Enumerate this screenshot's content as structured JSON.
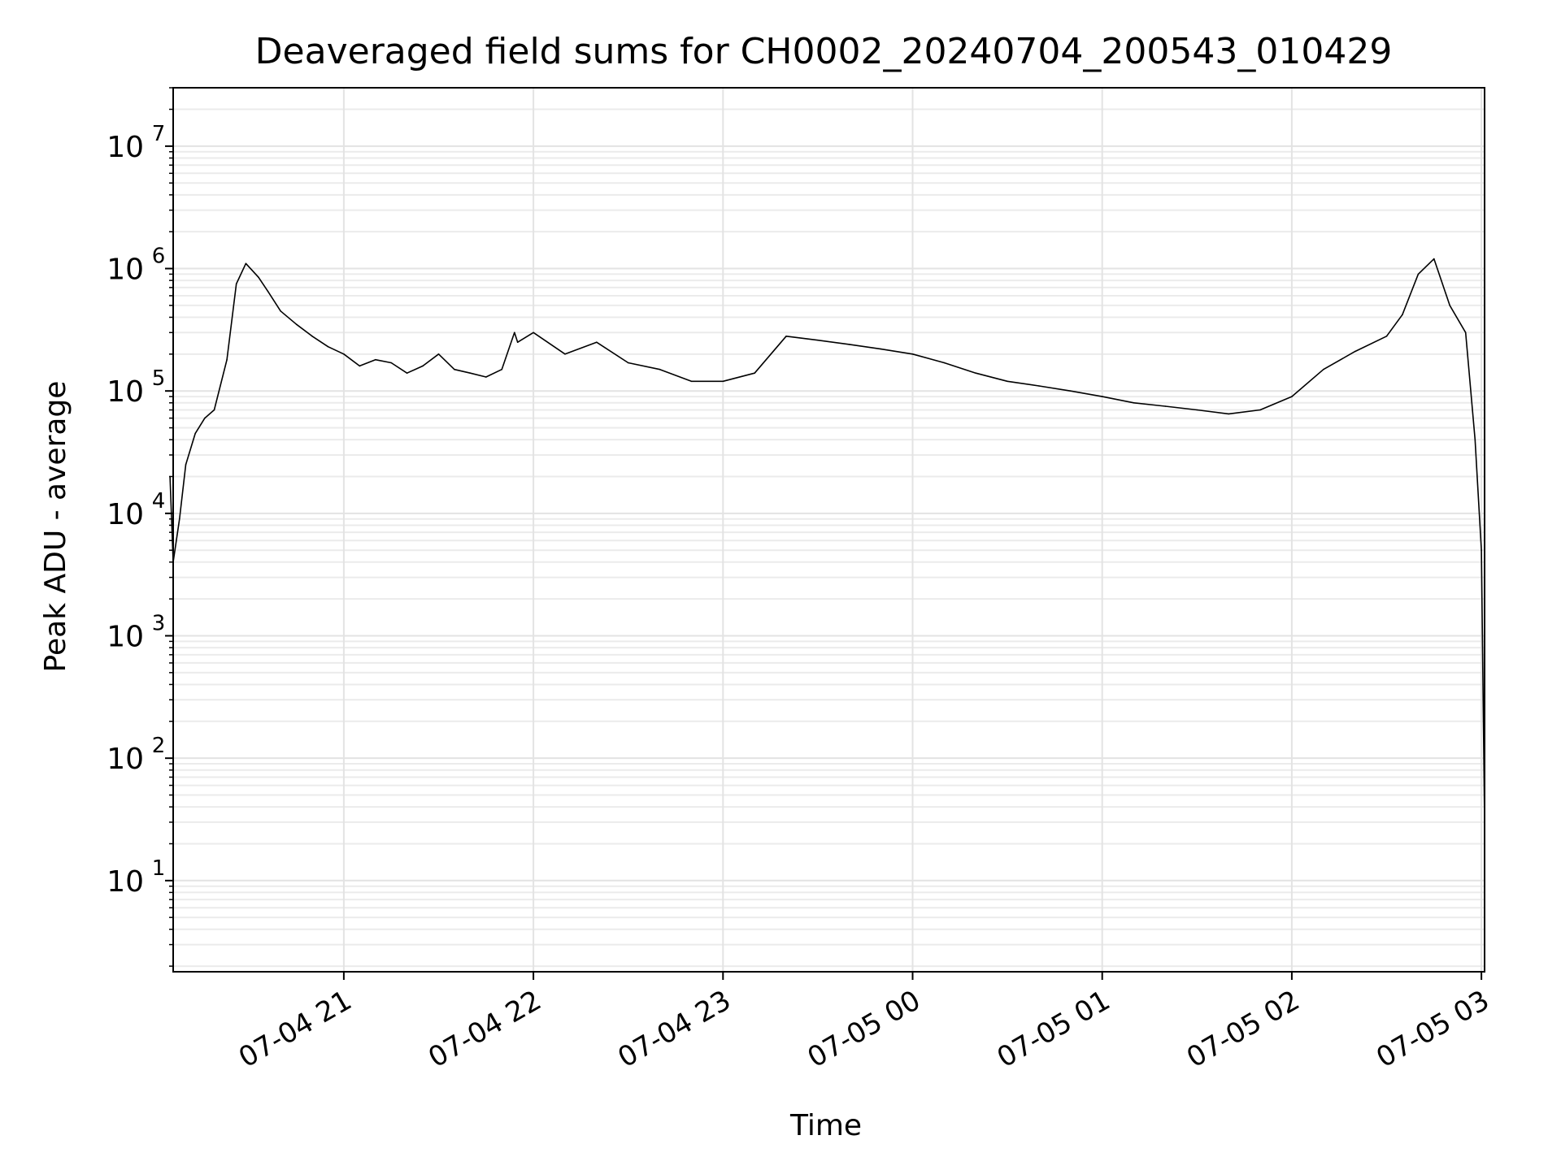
{
  "chart_data": {
    "type": "line",
    "title": "Deaveraged field sums for CH0002_20240704_200543_010429",
    "xlabel": "Time",
    "ylabel": "Peak ADU - average",
    "y_scale": "log",
    "ylim": [
      1.8,
      30000000
    ],
    "xlim": [
      "2024-07-04 20:06",
      "2024-07-05 03:01"
    ],
    "grid": true,
    "x_ticks": [
      {
        "label": "07-04 21",
        "value": "2024-07-04 21:00"
      },
      {
        "label": "07-04 22",
        "value": "2024-07-04 22:00"
      },
      {
        "label": "07-04 23",
        "value": "2024-07-04 23:00"
      },
      {
        "label": "07-05 00",
        "value": "2024-07-05 00:00"
      },
      {
        "label": "07-05 01",
        "value": "2024-07-05 01:00"
      },
      {
        "label": "07-05 02",
        "value": "2024-07-05 02:00"
      },
      {
        "label": "07-05 03",
        "value": "2024-07-05 03:00"
      }
    ],
    "y_ticks": [
      {
        "base": "10",
        "exp": "1",
        "value": 10
      },
      {
        "base": "10",
        "exp": "2",
        "value": 100
      },
      {
        "base": "10",
        "exp": "3",
        "value": 1000
      },
      {
        "base": "10",
        "exp": "4",
        "value": 10000
      },
      {
        "base": "10",
        "exp": "5",
        "value": 100000
      },
      {
        "base": "10",
        "exp": "6",
        "value": 1000000
      },
      {
        "base": "10",
        "exp": "7",
        "value": 10000000
      }
    ],
    "series": [
      {
        "color": "#000000",
        "x": [
          "2024-07-04 20:05",
          "2024-07-04 20:06",
          "2024-07-04 20:08",
          "2024-07-04 20:10",
          "2024-07-04 20:13",
          "2024-07-04 20:16",
          "2024-07-04 20:19",
          "2024-07-04 20:23",
          "2024-07-04 20:26",
          "2024-07-04 20:29",
          "2024-07-04 20:33",
          "2024-07-04 20:36",
          "2024-07-04 20:40",
          "2024-07-04 20:45",
          "2024-07-04 20:50",
          "2024-07-04 20:55",
          "2024-07-04 21:00",
          "2024-07-04 21:05",
          "2024-07-04 21:10",
          "2024-07-04 21:15",
          "2024-07-04 21:20",
          "2024-07-04 21:25",
          "2024-07-04 21:30",
          "2024-07-04 21:35",
          "2024-07-04 21:40",
          "2024-07-04 21:45",
          "2024-07-04 21:50",
          "2024-07-04 21:54",
          "2024-07-04 21:55",
          "2024-07-04 22:00",
          "2024-07-04 22:10",
          "2024-07-04 22:20",
          "2024-07-04 22:30",
          "2024-07-04 22:40",
          "2024-07-04 22:50",
          "2024-07-04 23:00",
          "2024-07-04 23:10",
          "2024-07-04 23:20",
          "2024-07-04 23:30",
          "2024-07-04 23:40",
          "2024-07-04 23:50",
          "2024-07-05 00:00",
          "2024-07-05 00:10",
          "2024-07-05 00:20",
          "2024-07-05 00:30",
          "2024-07-05 00:40",
          "2024-07-05 00:50",
          "2024-07-05 01:00",
          "2024-07-05 01:10",
          "2024-07-05 01:20",
          "2024-07-05 01:30",
          "2024-07-05 01:40",
          "2024-07-05 01:50",
          "2024-07-05 02:00",
          "2024-07-05 02:10",
          "2024-07-05 02:20",
          "2024-07-05 02:30",
          "2024-07-05 02:35",
          "2024-07-05 02:40",
          "2024-07-05 02:45",
          "2024-07-05 02:50",
          "2024-07-05 02:55",
          "2024-07-05 02:58",
          "2024-07-05 03:00",
          "2024-07-05 03:01"
        ],
        "y": [
          20000,
          4000,
          9000,
          25000,
          45000,
          60000,
          70000,
          180000,
          750000,
          1100000,
          850000,
          650000,
          450000,
          350000,
          280000,
          230000,
          200000,
          160000,
          180000,
          170000,
          140000,
          160000,
          200000,
          150000,
          140000,
          130000,
          150000,
          300000,
          250000,
          300000,
          200000,
          250000,
          170000,
          150000,
          120000,
          120000,
          140000,
          280000,
          260000,
          240000,
          220000,
          200000,
          170000,
          140000,
          120000,
          110000,
          100000,
          90000,
          80000,
          75000,
          70000,
          65000,
          70000,
          90000,
          150000,
          210000,
          280000,
          420000,
          900000,
          1200000,
          500000,
          300000,
          40000,
          5000,
          30
        ]
      }
    ]
  }
}
